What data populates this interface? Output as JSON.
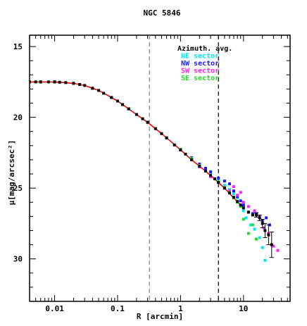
{
  "chart_data": {
    "type": "scatter",
    "title": "NGC 5846",
    "xlabel": "R [arcmin]",
    "ylabel": "μ[mag/arcsec²]",
    "xscale": "log",
    "xlim": [
      0.004,
      55
    ],
    "ylim": [
      33,
      14.2
    ],
    "y_inverted": true,
    "x_ticks": [
      {
        "value": 0.01,
        "label": "0.01"
      },
      {
        "value": 0.1,
        "label": "0.1"
      },
      {
        "value": 1,
        "label": "1"
      },
      {
        "value": 10,
        "label": "10"
      }
    ],
    "y_ticks": [
      {
        "value": 15,
        "label": "15"
      },
      {
        "value": 20,
        "label": "20"
      },
      {
        "value": 25,
        "label": "25"
      },
      {
        "value": 30,
        "label": "30"
      }
    ],
    "vlines": [
      {
        "x": 0.32,
        "color": "#808080"
      },
      {
        "x": 4.0,
        "color": "#000000"
      }
    ],
    "legend_position": "top-right",
    "legend": [
      {
        "label": "Azimuth. avg.",
        "color": "#000000"
      },
      {
        "label": "NE sector",
        "color": "#00e5ee"
      },
      {
        "label": "NW sector",
        "color": "#1a1aff"
      },
      {
        "label": "SW sector",
        "color": "#ff22ff"
      },
      {
        "label": "SE sector",
        "color": "#22dd22"
      }
    ],
    "model_curve": {
      "color": "#ff0000",
      "x": [
        0.004,
        0.006,
        0.01,
        0.015,
        0.02,
        0.03,
        0.05,
        0.07,
        0.1,
        0.15,
        0.2,
        0.3,
        0.5,
        0.7,
        1.0,
        1.5,
        2.0,
        3.0,
        4.0,
        5.0,
        7.0,
        10.0
      ],
      "y": [
        17.5,
        17.5,
        17.5,
        17.55,
        17.6,
        17.75,
        18.1,
        18.45,
        18.85,
        19.4,
        19.8,
        20.35,
        21.15,
        21.7,
        22.3,
        23.0,
        23.45,
        24.1,
        24.6,
        25.0,
        25.7,
        26.4
      ]
    },
    "series": [
      {
        "name": "Azimuth. avg.",
        "color": "#000000",
        "x": [
          0.004,
          0.005,
          0.006,
          0.008,
          0.01,
          0.012,
          0.015,
          0.02,
          0.025,
          0.03,
          0.04,
          0.05,
          0.06,
          0.08,
          0.1,
          0.12,
          0.15,
          0.2,
          0.25,
          0.3,
          0.4,
          0.5,
          0.6,
          0.8,
          1.0,
          1.2,
          1.5,
          2.0,
          2.5,
          3.0,
          3.5,
          4.0,
          5.0,
          6.0,
          7.0,
          8.0,
          9.0,
          10.0,
          12.0,
          14.0,
          16.0,
          18.0,
          20.0,
          22.0,
          25.0,
          28.0
        ],
        "y": [
          17.5,
          17.5,
          17.5,
          17.5,
          17.5,
          17.52,
          17.55,
          17.6,
          17.68,
          17.75,
          17.95,
          18.1,
          18.3,
          18.6,
          18.85,
          19.1,
          19.4,
          19.8,
          20.1,
          20.35,
          20.8,
          21.15,
          21.45,
          21.95,
          22.3,
          22.6,
          23.0,
          23.45,
          23.8,
          24.1,
          24.35,
          24.6,
          25.0,
          25.35,
          25.65,
          25.95,
          26.2,
          26.4,
          26.7,
          26.9,
          26.9,
          27.1,
          27.5,
          28.0,
          28.3,
          29.0
        ],
        "yerr": [
          0,
          0,
          0,
          0,
          0,
          0,
          0,
          0,
          0,
          0,
          0,
          0,
          0,
          0,
          0,
          0,
          0,
          0,
          0,
          0,
          0,
          0,
          0,
          0,
          0,
          0,
          0,
          0,
          0,
          0,
          0,
          0,
          0,
          0,
          0,
          0,
          0,
          0,
          0,
          0,
          0.15,
          0.2,
          0.3,
          0.5,
          0.7,
          0.9
        ]
      },
      {
        "name": "NE sector",
        "color": "#00e5ee",
        "x": [
          0.006,
          0.01,
          0.02,
          0.04,
          0.08,
          0.15,
          0.3,
          0.6,
          1.0,
          1.5,
          2.0,
          3.0,
          4.0,
          5.0,
          6.0,
          7.0,
          8.0,
          9.0,
          10.0,
          11.0,
          13.0,
          15.0,
          18.0,
          20.0,
          22.0
        ],
        "y": [
          17.5,
          17.5,
          17.6,
          17.95,
          18.6,
          19.4,
          20.35,
          21.45,
          22.3,
          22.95,
          23.4,
          24.05,
          24.5,
          24.8,
          25.1,
          25.4,
          25.7,
          26.2,
          26.6,
          27.1,
          27.6,
          27.9,
          28.5,
          29.2,
          30.1
        ]
      },
      {
        "name": "NW sector",
        "color": "#1a1aff",
        "x": [
          0.006,
          0.01,
          0.02,
          0.04,
          0.08,
          0.15,
          0.3,
          0.6,
          1.0,
          1.5,
          2.0,
          2.5,
          3.0,
          4.0,
          5.0,
          6.0,
          7.0,
          8.0,
          9.0,
          10.0,
          12.0,
          14.0,
          16.0,
          18.0,
          20.0,
          23.0,
          26.0
        ],
        "y": [
          17.5,
          17.5,
          17.6,
          17.95,
          18.6,
          19.4,
          20.35,
          21.45,
          22.3,
          22.85,
          23.3,
          23.6,
          23.85,
          24.3,
          24.5,
          24.7,
          25.2,
          25.6,
          25.9,
          26.2,
          26.7,
          26.8,
          26.8,
          27.0,
          27.3,
          27.1,
          27.6
        ]
      },
      {
        "name": "SW sector",
        "color": "#ff22ff",
        "x": [
          0.006,
          0.01,
          0.02,
          0.04,
          0.08,
          0.15,
          0.3,
          0.6,
          1.0,
          1.5,
          2.0,
          3.0,
          4.0,
          5.0,
          6.0,
          7.0,
          8.0,
          9.0,
          10.0,
          12.0,
          15.0,
          18.0,
          21.0,
          25.0,
          30.0,
          35.0
        ],
        "y": [
          17.5,
          17.5,
          17.6,
          17.95,
          18.6,
          19.4,
          20.35,
          21.45,
          22.3,
          23.0,
          23.5,
          24.2,
          24.6,
          25.0,
          25.2,
          24.9,
          25.5,
          25.3,
          26.0,
          26.3,
          26.6,
          27.0,
          27.8,
          28.2,
          29.1,
          29.4
        ]
      },
      {
        "name": "SE sector",
        "color": "#22dd22",
        "x": [
          0.004,
          0.006,
          0.01,
          0.02,
          0.04,
          0.08,
          0.15,
          0.3,
          0.6,
          1.0,
          1.5,
          2.0,
          3.0,
          4.0,
          5.0,
          6.0,
          7.0,
          8.0,
          9.0,
          10.0,
          12.0,
          14.0,
          16.0
        ],
        "y": [
          17.5,
          17.5,
          17.5,
          17.6,
          17.95,
          18.6,
          19.4,
          20.35,
          21.45,
          22.25,
          22.9,
          23.4,
          24.1,
          24.55,
          24.95,
          25.3,
          25.7,
          26.0,
          26.3,
          27.2,
          28.2,
          27.6,
          28.6
        ]
      }
    ]
  }
}
